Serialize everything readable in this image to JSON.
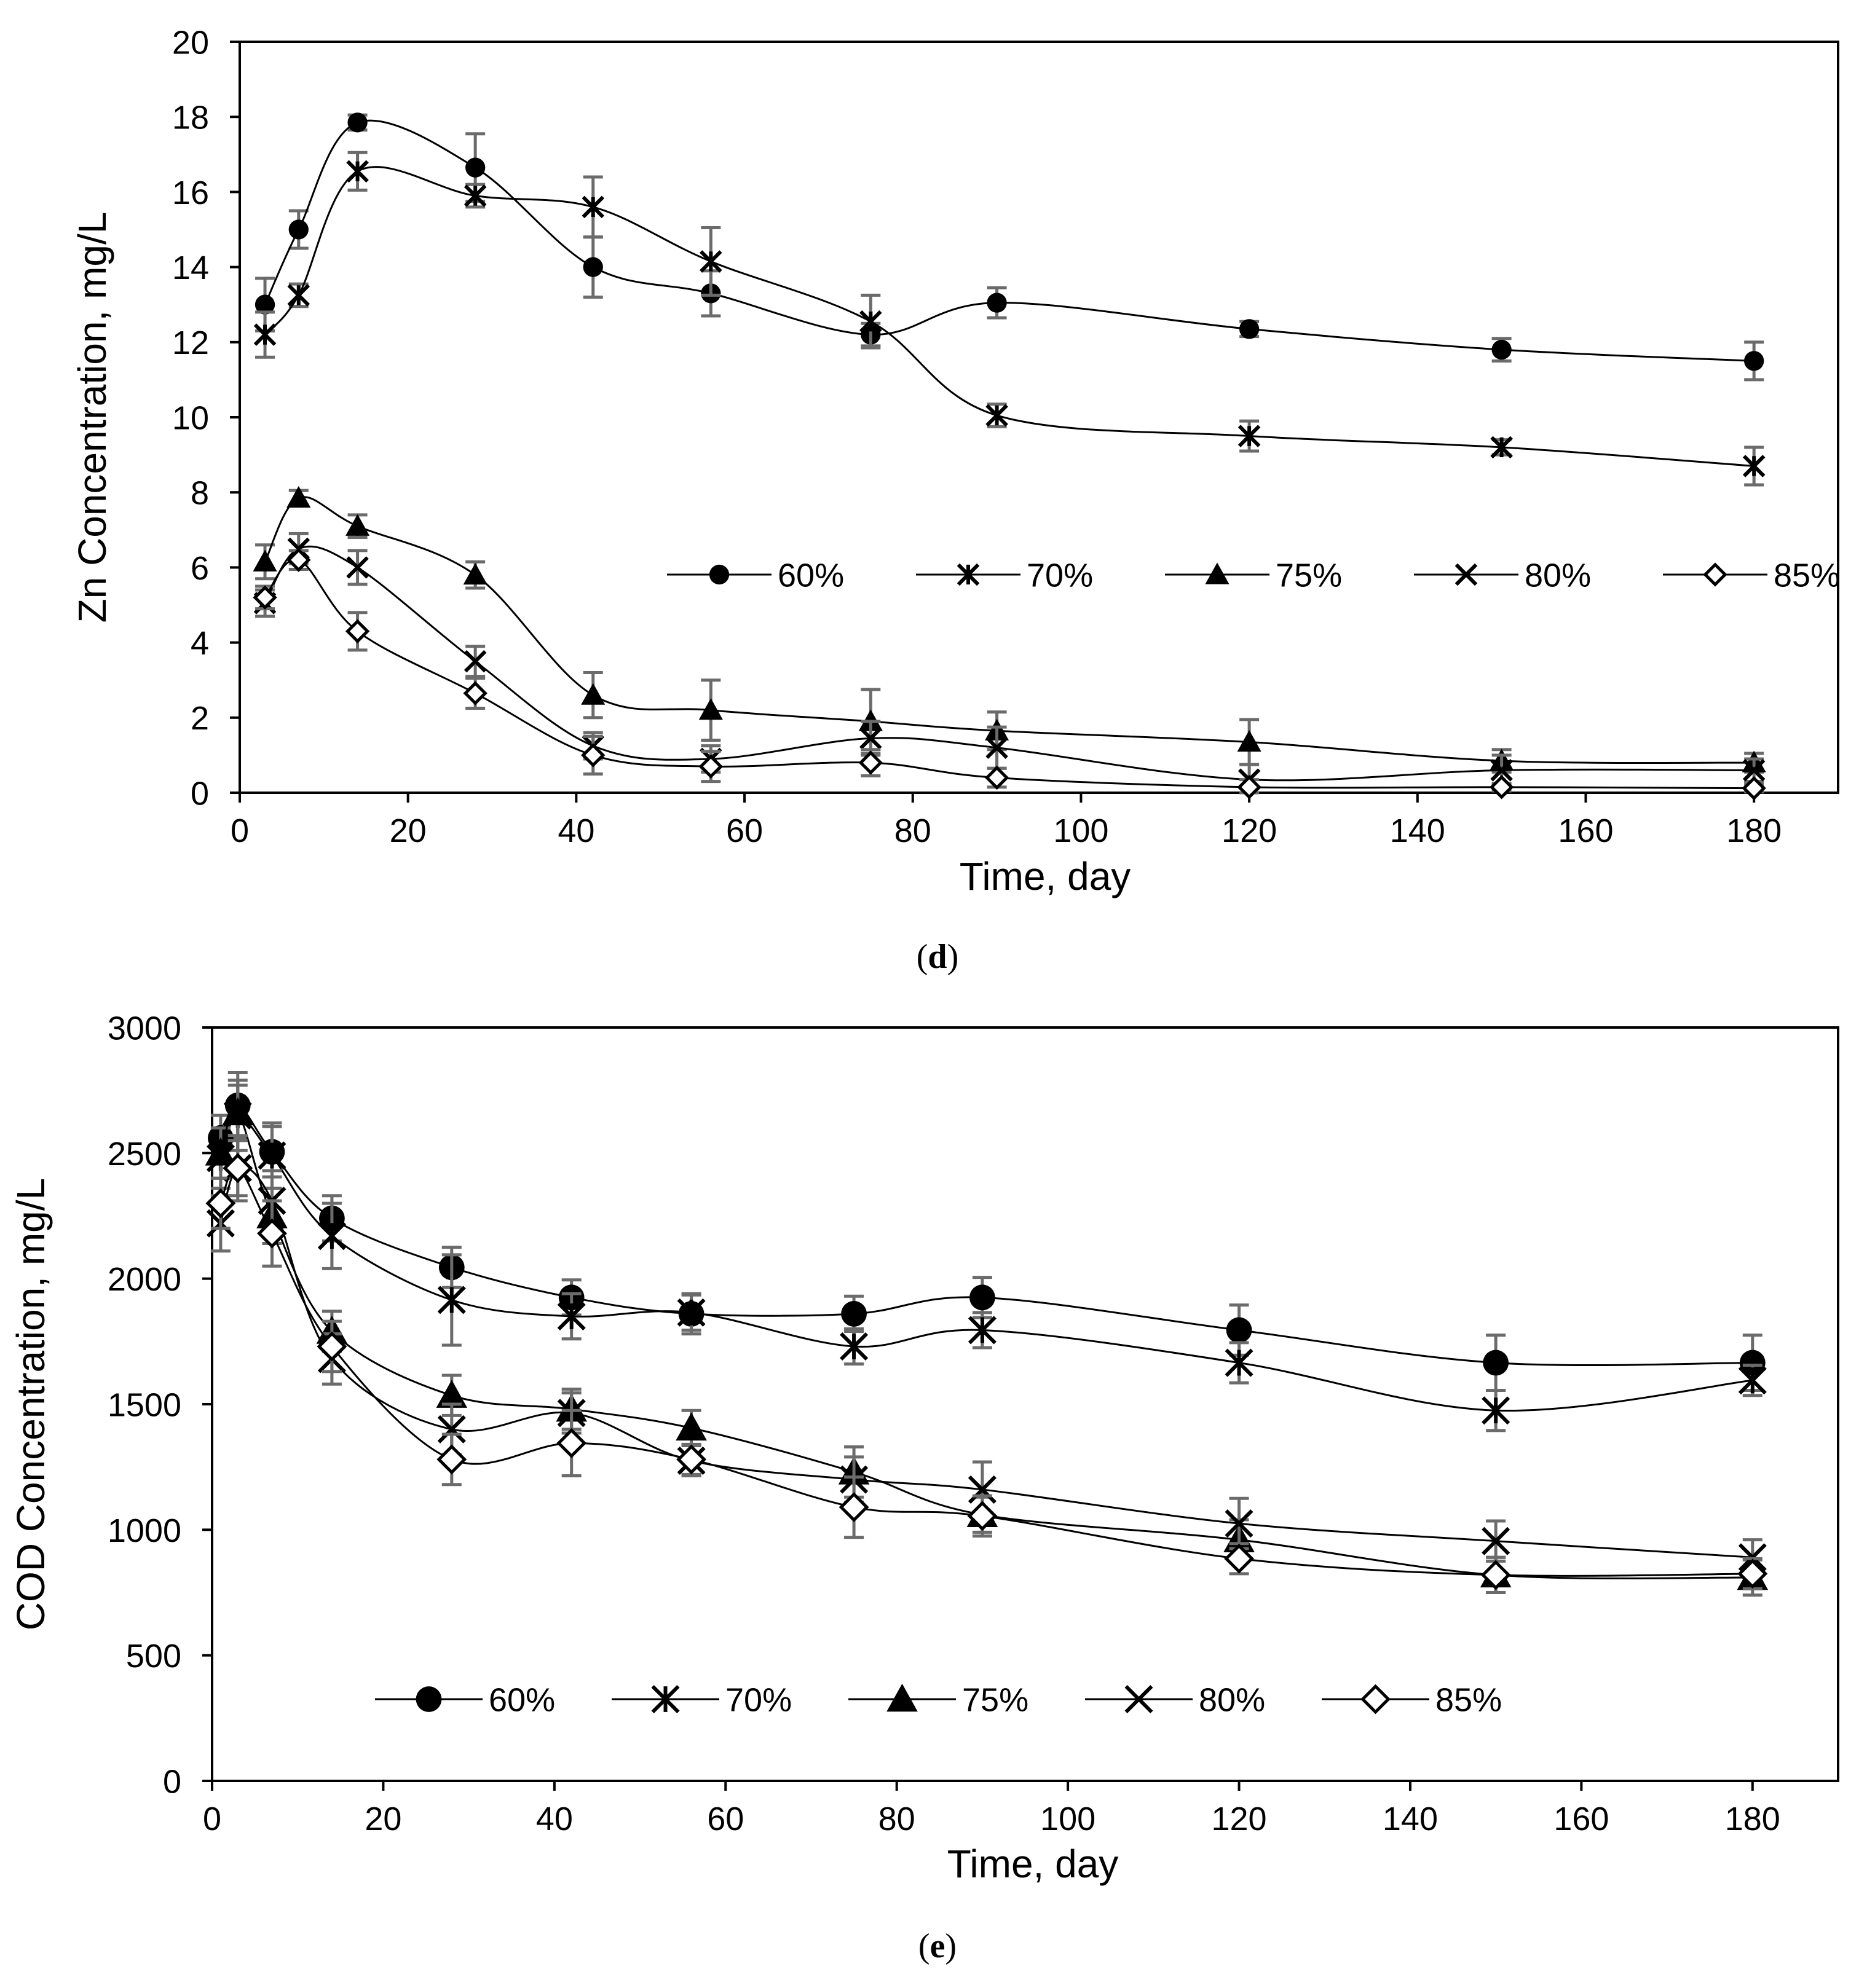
{
  "chart_data": [
    {
      "type": "line",
      "panel_label": "(d)",
      "title": "",
      "xlabel": "Time, day",
      "ylabel": "Zn Concentration, mg/L",
      "xlim": [
        0,
        190
      ],
      "ylim": [
        0,
        20
      ],
      "xticks": [
        0,
        20,
        40,
        60,
        80,
        100,
        120,
        140,
        160,
        180
      ],
      "yticks": [
        0,
        2,
        4,
        6,
        8,
        10,
        12,
        14,
        16,
        18,
        20
      ],
      "grid": false,
      "legend_position": "middle-right",
      "series": [
        {
          "name": "60%",
          "marker": "circle",
          "x": [
            3,
            7,
            14,
            28,
            42,
            56,
            75,
            90,
            120,
            150,
            180
          ],
          "y": [
            13.0,
            15.0,
            17.85,
            16.65,
            14.0,
            13.3,
            12.2,
            13.05,
            12.35,
            11.8,
            11.5
          ],
          "err": [
            0.7,
            0.5,
            0.2,
            0.9,
            0.8,
            0.6,
            0.3,
            0.4,
            0.2,
            0.3,
            0.5
          ]
        },
        {
          "name": "70%",
          "marker": "asterisk",
          "x": [
            3,
            7,
            14,
            28,
            42,
            56,
            75,
            90,
            120,
            150,
            180
          ],
          "y": [
            12.2,
            13.25,
            16.55,
            15.9,
            15.6,
            14.15,
            12.55,
            10.05,
            9.5,
            9.2,
            8.7
          ],
          "err": [
            0.6,
            0.3,
            0.5,
            0.3,
            0.8,
            0.9,
            0.7,
            0.3,
            0.4,
            0.2,
            0.5
          ]
        },
        {
          "name": "75%",
          "marker": "triangle",
          "x": [
            3,
            7,
            14,
            28,
            42,
            56,
            75,
            90,
            120,
            150,
            180
          ],
          "y": [
            6.15,
            7.85,
            7.1,
            5.8,
            2.6,
            2.2,
            1.9,
            1.65,
            1.35,
            0.85,
            0.8
          ],
          "err": [
            0.45,
            0.2,
            0.3,
            0.35,
            0.6,
            0.8,
            0.85,
            0.5,
            0.6,
            0.3,
            0.25
          ]
        },
        {
          "name": "80%",
          "marker": "x",
          "x": [
            3,
            7,
            14,
            28,
            42,
            56,
            75,
            90,
            120,
            150,
            180
          ],
          "y": [
            5.05,
            6.5,
            6.0,
            3.5,
            1.25,
            0.9,
            1.45,
            1.2,
            0.35,
            0.6,
            0.6
          ],
          "err": [
            0.35,
            0.4,
            0.45,
            0.4,
            0.35,
            0.35,
            0.45,
            0.55,
            0.4,
            0.4,
            0.3
          ]
        },
        {
          "name": "85%",
          "marker": "diamond",
          "x": [
            3,
            7,
            14,
            28,
            42,
            56,
            75,
            90,
            120,
            150,
            180
          ],
          "y": [
            5.2,
            6.2,
            4.3,
            2.65,
            1.0,
            0.7,
            0.8,
            0.4,
            0.15,
            0.15,
            0.12
          ],
          "err": [
            0.3,
            0.25,
            0.5,
            0.4,
            0.5,
            0.4,
            0.35,
            0.25,
            0.2,
            0.1,
            0.1
          ]
        }
      ]
    },
    {
      "type": "line",
      "panel_label": "(e)",
      "title": "",
      "xlabel": "Time, day",
      "ylabel": "COD Concentration, mg/L",
      "xlim": [
        0,
        190
      ],
      "ylim": [
        0,
        3000
      ],
      "xticks": [
        0,
        20,
        40,
        60,
        80,
        100,
        120,
        140,
        160,
        180
      ],
      "yticks": [
        0,
        500,
        1000,
        1500,
        2000,
        2500,
        3000
      ],
      "grid": false,
      "legend_position": "bottom-center",
      "series": [
        {
          "name": "60%",
          "marker": "circle",
          "x": [
            1,
            3,
            7,
            14,
            28,
            42,
            56,
            75,
            90,
            120,
            150,
            180
          ],
          "y": [
            2560,
            2690,
            2505,
            2240,
            2045,
            1925,
            1860,
            1860,
            1925,
            1795,
            1665,
            1665
          ],
          "err": [
            90,
            130,
            100,
            90,
            80,
            70,
            80,
            70,
            80,
            100,
            110,
            110
          ]
        },
        {
          "name": "70%",
          "marker": "asterisk",
          "x": [
            1,
            3,
            7,
            14,
            28,
            42,
            56,
            75,
            90,
            120,
            150,
            180
          ],
          "y": [
            2480,
            2650,
            2490,
            2170,
            1915,
            1850,
            1865,
            1730,
            1795,
            1665,
            1475,
            1595
          ],
          "err": [
            120,
            140,
            130,
            130,
            180,
            90,
            70,
            70,
            70,
            80,
            80,
            60
          ]
        },
        {
          "name": "75%",
          "marker": "triangle",
          "x": [
            1,
            3,
            7,
            14,
            28,
            42,
            56,
            75,
            90,
            120,
            150,
            180
          ],
          "y": [
            2500,
            2660,
            2250,
            1790,
            1535,
            1480,
            1405,
            1230,
            1060,
            960,
            820,
            810
          ],
          "err": [
            100,
            110,
            110,
            80,
            80,
            80,
            70,
            100,
            70,
            80,
            70,
            70
          ]
        },
        {
          "name": "80%",
          "marker": "x",
          "x": [
            1,
            3,
            7,
            14,
            28,
            42,
            56,
            75,
            90,
            120,
            150,
            180
          ],
          "y": [
            2220,
            2440,
            2310,
            1680,
            1400,
            1465,
            1275,
            1200,
            1160,
            1025,
            955,
            890
          ],
          "err": [
            110,
            130,
            120,
            100,
            100,
            80,
            60,
            90,
            110,
            100,
            80,
            70
          ]
        },
        {
          "name": "85%",
          "marker": "diamond",
          "x": [
            1,
            3,
            7,
            14,
            28,
            42,
            56,
            75,
            90,
            120,
            150,
            180
          ],
          "y": [
            2300,
            2440,
            2180,
            1730,
            1280,
            1345,
            1280,
            1090,
            1055,
            885,
            820,
            825
          ],
          "err": [
            100,
            110,
            130,
            100,
            100,
            130,
            60,
            120,
            80,
            60,
            70,
            60
          ]
        }
      ]
    }
  ]
}
